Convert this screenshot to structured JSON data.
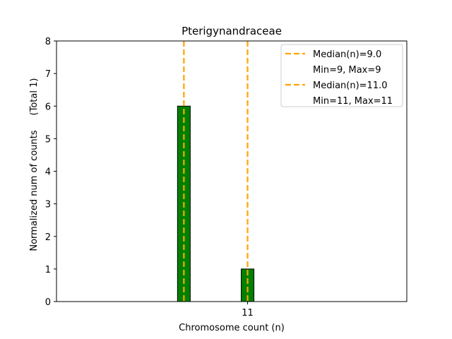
{
  "chart_data": {
    "type": "bar",
    "title": "Pterigynandraceae",
    "xlabel": "Chromosome count (n)",
    "ylabel": "Normalized num of counts",
    "ylabel_note": "(Total 1)",
    "xlim": [
      5,
      16
    ],
    "ylim": [
      0,
      8
    ],
    "yticks": [
      0,
      1,
      2,
      3,
      4,
      5,
      6,
      7,
      8
    ],
    "xticks": [
      11
    ],
    "grid": false,
    "legend_position": "top-right",
    "colors": {
      "bar_fill": "#008000",
      "bar_edge": "#000000",
      "median_line": "#ffa500"
    },
    "bars": [
      {
        "x": 9,
        "value": 6
      },
      {
        "x": 11,
        "value": 1
      }
    ],
    "median_lines": [
      {
        "x": 9.0,
        "label": "Median(n)=9.0",
        "range_label": "Min=9, Max=9"
      },
      {
        "x": 11.0,
        "label": "Median(n)=11.0",
        "range_label": "Min=11, Max=11"
      }
    ]
  }
}
